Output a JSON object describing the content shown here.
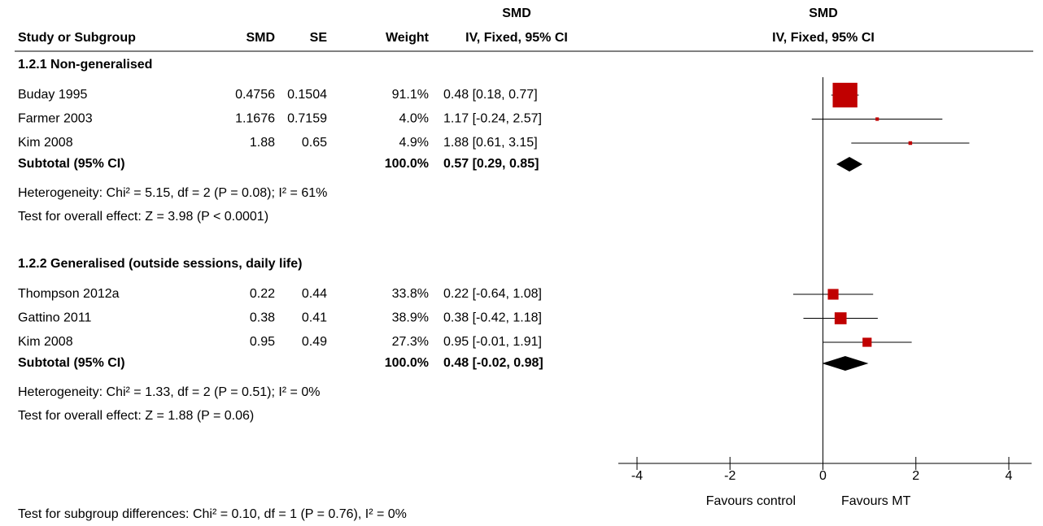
{
  "chart_data": {
    "type": "forest",
    "headers": {
      "study": "Study or Subgroup",
      "smd": "SMD",
      "se": "SE",
      "weight": "Weight",
      "ci_top": "SMD",
      "ci": "IV, Fixed, 95% CI",
      "plot_top": "SMD",
      "plot": "IV, Fixed, 95% CI"
    },
    "groups": [
      {
        "title": "1.2.1 Non-generalised",
        "studies": [
          {
            "name": "Buday 1995",
            "smd": 0.4756,
            "se": 0.1504,
            "weight": 91.1,
            "weight_label": "91.1%",
            "ci_lower": 0.18,
            "ci_upper": 0.77,
            "ci_label": "0.48 [0.18, 0.77]"
          },
          {
            "name": "Farmer 2003",
            "smd": 1.1676,
            "se": 0.7159,
            "weight": 4.0,
            "weight_label": "4.0%",
            "ci_lower": -0.24,
            "ci_upper": 2.57,
            "ci_label": "1.17 [-0.24, 2.57]"
          },
          {
            "name": "Kim 2008",
            "smd": 1.88,
            "se": 0.65,
            "weight": 4.9,
            "weight_label": "4.9%",
            "ci_lower": 0.61,
            "ci_upper": 3.15,
            "ci_label": "1.88 [0.61, 3.15]"
          }
        ],
        "subtotal": {
          "name": "Subtotal (95% CI)",
          "weight": 100.0,
          "weight_label": "100.0%",
          "estimate": 0.57,
          "ci_lower": 0.29,
          "ci_upper": 0.85,
          "ci_label": "0.57 [0.29, 0.85]"
        },
        "heterogeneity": "Heterogeneity: Chi² = 5.15, df = 2 (P = 0.08); I² = 61%",
        "overall_effect": "Test for overall effect: Z = 3.98 (P < 0.0001)"
      },
      {
        "title": "1.2.2 Generalised (outside sessions, daily life)",
        "studies": [
          {
            "name": "Thompson 2012a",
            "smd": 0.22,
            "se": 0.44,
            "weight": 33.8,
            "weight_label": "33.8%",
            "ci_lower": -0.64,
            "ci_upper": 1.08,
            "ci_label": "0.22 [-0.64, 1.08]"
          },
          {
            "name": "Gattino 2011",
            "smd": 0.38,
            "se": 0.41,
            "weight": 38.9,
            "weight_label": "38.9%",
            "ci_lower": -0.42,
            "ci_upper": 1.18,
            "ci_label": "0.38 [-0.42, 1.18]"
          },
          {
            "name": "Kim 2008",
            "smd": 0.95,
            "se": 0.49,
            "weight": 27.3,
            "weight_label": "27.3%",
            "ci_lower": -0.01,
            "ci_upper": 1.91,
            "ci_label": "0.95 [-0.01, 1.91]"
          }
        ],
        "subtotal": {
          "name": "Subtotal (95% CI)",
          "weight": 100.0,
          "weight_label": "100.0%",
          "estimate": 0.48,
          "ci_lower": -0.02,
          "ci_upper": 0.98,
          "ci_label": "0.48 [-0.02, 0.98]"
        },
        "heterogeneity": "Heterogeneity: Chi² = 1.33, df = 2 (P = 0.51); I² = 0%",
        "overall_effect": "Test for overall effect: Z = 1.88 (P = 0.06)"
      }
    ],
    "subgroup_differences": "Test for subgroup differences: Chi² = 0.10, df = 1 (P = 0.76), I² = 0%",
    "xlim": [
      -4,
      4
    ],
    "xticks": [
      -4,
      -2,
      0,
      2,
      4
    ],
    "favours_left": "Favours control",
    "favours_right": "Favours MT",
    "marker_color": "#c00000",
    "diamond_color": "#000000"
  }
}
